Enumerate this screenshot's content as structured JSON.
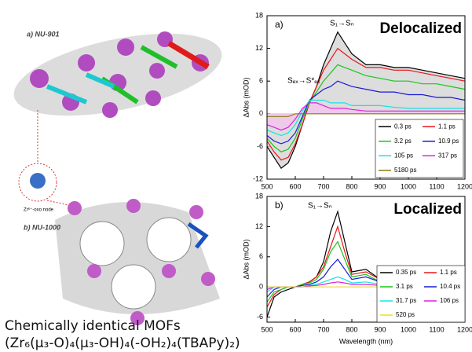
{
  "illustration": {
    "label_a": "a) NU-901",
    "node_label": "Zr⁶⁺-oxo node",
    "label_b": "b) NU-1000",
    "caption_line1": "Chemically identical MOFs",
    "caption_line2": "(Zr₆(μ₃-O)₄(μ₃-OH)₄(-OH₂)₄(TBAPy)₂)"
  },
  "chart_data": [
    {
      "type": "line",
      "panel_label": "a)",
      "title": "Delocalized",
      "transition_label": "S₁→Sₙ",
      "second_transition_label": "Sₑₓ→S*ₑₓ",
      "y_label": "ΔAbs (mOD)",
      "legend": "lower right",
      "x": [
        500,
        525,
        550,
        575,
        600,
        625,
        650,
        675,
        700,
        725,
        750,
        775,
        800,
        850,
        900,
        950,
        1000,
        1050,
        1100,
        1150,
        1200
      ],
      "xlim": [
        500,
        1200
      ],
      "xticks": [
        500,
        600,
        700,
        800,
        900,
        1000,
        1100,
        1200
      ],
      "ylim": [
        -12,
        18
      ],
      "yticks": [
        -12,
        -6,
        0,
        6,
        12,
        18
      ],
      "series": [
        {
          "name": "0.3 ps",
          "color": "#000000",
          "fill": "#d4d4d4",
          "values": [
            -6,
            -8,
            -10,
            -9,
            -6,
            -2,
            2,
            5,
            9,
            12,
            15,
            13,
            11,
            9,
            9,
            8.5,
            8.5,
            8,
            7.5,
            7,
            6.5
          ]
        },
        {
          "name": "1.1 ps",
          "color": "#e8161b",
          "values": [
            -5,
            -7,
            -8.5,
            -8,
            -5.5,
            -2,
            2,
            5,
            8,
            10,
            12,
            11,
            10,
            8.5,
            8.5,
            8,
            8,
            7.5,
            7,
            6.5,
            6
          ]
        },
        {
          "name": "3.2 ps",
          "color": "#19c619",
          "values": [
            -4.5,
            -6,
            -7,
            -6.5,
            -4.5,
            -1,
            2,
            4,
            6,
            7.5,
            9,
            8.5,
            8,
            7,
            6.5,
            6,
            6,
            5.5,
            5.5,
            5,
            4.5
          ]
        },
        {
          "name": "10.9 ps",
          "color": "#1a1ad6",
          "values": [
            -4,
            -5,
            -5.5,
            -5,
            -3.5,
            -0.5,
            2.5,
            3.5,
            4.5,
            5,
            6,
            5.5,
            5,
            4.5,
            4,
            4,
            3.5,
            3.5,
            3,
            3,
            2.5
          ]
        },
        {
          "name": "105 ps",
          "color": "#14e4e4",
          "values": [
            -3,
            -3.5,
            -4,
            -3.5,
            -2,
            0.5,
            2.5,
            2.5,
            2.5,
            2,
            2,
            2,
            1.5,
            1.5,
            1.5,
            1.2,
            1,
            1,
            1,
            1,
            1
          ]
        },
        {
          "name": "317 ps",
          "color": "#e020d8",
          "fill": "#f2c4ee",
          "values": [
            -2,
            -2.5,
            -3,
            -2.5,
            -1,
            1,
            2,
            2,
            1.5,
            1,
            1,
            1,
            0.8,
            0.5,
            0.5,
            0.5,
            0.5,
            0.5,
            0.5,
            0.5,
            0.5
          ]
        },
        {
          "name": "5180 ps",
          "color": "#8a7a10",
          "values": [
            -0.5,
            -0.5,
            -0.5,
            -0.5,
            0,
            0,
            0,
            0,
            0,
            0,
            0,
            0,
            0,
            0,
            0,
            0,
            0,
            0,
            0,
            0,
            0
          ]
        }
      ]
    },
    {
      "type": "line",
      "panel_label": "b)",
      "title": "Localized",
      "transition_label": "S₁→Sₙ",
      "y_label": "ΔAbs (mOD)",
      "x_label": "Wavelength (nm)",
      "legend": "lower right",
      "x": [
        500,
        525,
        550,
        575,
        600,
        625,
        650,
        675,
        700,
        725,
        750,
        775,
        800,
        850,
        900,
        950,
        1000,
        1050,
        1100,
        1150,
        1200
      ],
      "xlim": [
        500,
        1200
      ],
      "xticks": [
        500,
        600,
        700,
        800,
        900,
        1000,
        1100,
        1200
      ],
      "ylim": [
        -7,
        18
      ],
      "yticks": [
        -6,
        0,
        6,
        12,
        18
      ],
      "series": [
        {
          "name": "0.35 ps",
          "color": "#000000",
          "values": [
            -6,
            -2,
            -1,
            -0.5,
            0,
            0.5,
            1,
            2,
            5,
            11,
            15,
            9,
            3,
            3.5,
            1.5,
            1,
            1.5,
            2,
            3,
            4,
            3
          ]
        },
        {
          "name": "1.1 ps",
          "color": "#e8161b",
          "values": [
            -4,
            -1.5,
            -0.5,
            0,
            0,
            0.5,
            1,
            2,
            4,
            8,
            12,
            7,
            2.5,
            3,
            1.5,
            1,
            1.5,
            2,
            3,
            3.5,
            3
          ]
        },
        {
          "name": "3.1 ps",
          "color": "#19c619",
          "values": [
            -3,
            -1,
            -0.5,
            0,
            0,
            0.5,
            0.8,
            1.5,
            3.5,
            7,
            9,
            5.5,
            2,
            2.5,
            1,
            1,
            1.5,
            2,
            3,
            3.5,
            3
          ]
        },
        {
          "name": "10.4 ps",
          "color": "#1a1ad6",
          "values": [
            -2,
            -0.5,
            0,
            0,
            0,
            0.3,
            0.5,
            1,
            2,
            4,
            5.5,
            3.5,
            1.5,
            2,
            1,
            0.8,
            1,
            1.5,
            2.5,
            3,
            2.5
          ]
        },
        {
          "name": "31.7 ps",
          "color": "#14e4e4",
          "values": [
            -1,
            0,
            0,
            0,
            0,
            0,
            0.3,
            0.5,
            1,
            1.5,
            2,
            1.5,
            0.8,
            1,
            0.5,
            0.5,
            0.5,
            1,
            1.5,
            2,
            1.5
          ]
        },
        {
          "name": "106 ps",
          "color": "#e020d8",
          "values": [
            -0.5,
            0,
            0,
            0,
            0,
            0,
            0.2,
            0.3,
            0.5,
            0.8,
            1,
            0.8,
            0.5,
            0.5,
            0.3,
            0.3,
            0.3,
            0.5,
            0.8,
            1,
            0.8
          ]
        },
        {
          "name": "520 ps",
          "color": "#e8e020",
          "values": [
            0,
            0,
            0,
            0,
            0,
            0,
            0,
            0,
            0,
            0,
            0,
            0,
            0,
            0,
            0,
            0,
            0,
            0,
            0,
            0,
            0
          ]
        }
      ]
    }
  ]
}
